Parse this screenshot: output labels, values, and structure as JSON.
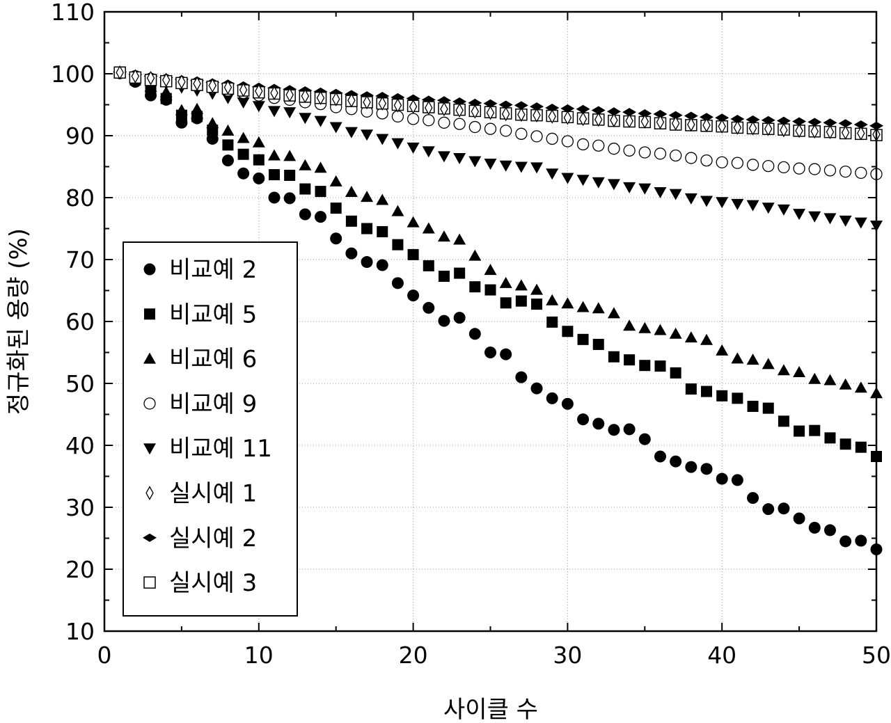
{
  "chart_data": {
    "type": "scatter",
    "xlabel": "사이클 수",
    "ylabel": "정규화된 용량 (%)",
    "xlim": [
      0,
      50
    ],
    "ylim": [
      10,
      110
    ],
    "xticks": [
      0,
      10,
      20,
      30,
      40,
      50
    ],
    "yticks": [
      10,
      20,
      30,
      40,
      50,
      60,
      70,
      80,
      90,
      100,
      110
    ],
    "grid": true,
    "legend_position": "lower-left",
    "x": [
      1,
      2,
      3,
      4,
      5,
      6,
      7,
      8,
      9,
      10,
      11,
      12,
      13,
      14,
      15,
      16,
      17,
      18,
      19,
      20,
      21,
      22,
      23,
      24,
      25,
      26,
      27,
      28,
      29,
      30,
      31,
      32,
      33,
      34,
      35,
      36,
      37,
      38,
      39,
      40,
      41,
      42,
      43,
      44,
      45,
      46,
      47,
      48,
      49,
      50
    ],
    "series": [
      {
        "name": "비교예 2",
        "marker": "circle-filled",
        "values": [
          100.2,
          98.7,
          96.5,
          95.8,
          92.1,
          92.8,
          89.5,
          86.0,
          83.9,
          83.1,
          80.0,
          79.9,
          77.3,
          76.9,
          73.4,
          71.0,
          69.6,
          69.1,
          66.2,
          64.2,
          62.2,
          60.1,
          60.6,
          58.0,
          55.0,
          54.7,
          51.0,
          49.2,
          47.6,
          46.7,
          44.2,
          43.5,
          42.5,
          42.6,
          41.0,
          38.2,
          37.4,
          36.5,
          36.2,
          34.6,
          34.4,
          31.5,
          29.7,
          29.8,
          28.2,
          26.7,
          26.3,
          24.5,
          24.6,
          23.2
        ]
      },
      {
        "name": "비교예 5",
        "marker": "square-filled",
        "values": [
          100.2,
          99.0,
          97.4,
          96.0,
          93.3,
          93.1,
          90.9,
          88.5,
          87.0,
          86.1,
          83.7,
          83.6,
          81.4,
          81.0,
          78.3,
          76.2,
          75.0,
          74.5,
          72.4,
          70.8,
          69.0,
          67.3,
          67.8,
          65.6,
          65.1,
          63.0,
          63.3,
          62.8,
          59.9,
          58.4,
          57.1,
          56.3,
          54.3,
          53.8,
          52.9,
          52.8,
          51.7,
          49.1,
          48.7,
          48.0,
          47.6,
          46.3,
          46.0,
          43.9,
          42.3,
          42.4,
          41.2,
          40.2,
          39.7,
          38.2
        ]
      },
      {
        "name": "비교예 6",
        "marker": "triangle-up",
        "values": [
          100.3,
          99.3,
          97.9,
          97.0,
          94.1,
          94.3,
          92.0,
          90.8,
          89.6,
          88.9,
          86.8,
          86.7,
          85.2,
          84.8,
          82.6,
          80.9,
          80.1,
          79.6,
          77.8,
          76.0,
          75.0,
          73.7,
          73.2,
          70.6,
          68.3,
          66.2,
          65.8,
          65.1,
          63.4,
          62.9,
          62.3,
          62.1,
          61.3,
          59.3,
          58.9,
          58.6,
          58.0,
          57.4,
          57.0,
          55.3,
          54.0,
          53.8,
          53.1,
          52.1,
          51.8,
          50.7,
          50.5,
          49.8,
          49.3,
          48.4
        ]
      },
      {
        "name": "비교예 9",
        "marker": "circle-open",
        "values": [
          100.1,
          99.6,
          99.2,
          98.9,
          98.4,
          98.1,
          97.7,
          97.3,
          96.9,
          96.5,
          96.1,
          95.8,
          95.4,
          95.1,
          94.6,
          94.3,
          93.9,
          93.6,
          93.1,
          92.7,
          92.5,
          92.1,
          91.9,
          91.4,
          91.1,
          90.8,
          90.3,
          89.9,
          89.5,
          89.1,
          88.6,
          88.4,
          87.9,
          87.6,
          87.3,
          87.1,
          86.8,
          86.4,
          86.0,
          85.7,
          85.6,
          85.3,
          85.1,
          84.9,
          84.7,
          84.6,
          84.4,
          84.2,
          84.0,
          83.8
        ]
      },
      {
        "name": "비교예 11",
        "marker": "triangle-down",
        "values": [
          100.1,
          99.5,
          98.9,
          98.4,
          97.8,
          97.3,
          96.8,
          96.1,
          95.4,
          94.8,
          94.0,
          93.8,
          92.9,
          92.4,
          91.4,
          90.6,
          90.2,
          89.5,
          88.8,
          88.1,
          87.5,
          86.7,
          86.4,
          85.9,
          85.5,
          85.2,
          85.0,
          84.9,
          83.9,
          83.2,
          82.9,
          82.5,
          82.2,
          81.7,
          81.5,
          80.9,
          80.6,
          79.9,
          79.5,
          79.3,
          79.0,
          78.8,
          78.4,
          78.1,
          77.4,
          77.0,
          76.7,
          76.3,
          76.0,
          75.5
        ]
      },
      {
        "name": "실시예 1",
        "marker": "diamond-open",
        "values": [
          100.2,
          99.6,
          99.3,
          99.0,
          98.7,
          98.4,
          98.1,
          97.8,
          97.4,
          97.2,
          96.9,
          96.6,
          96.4,
          96.1,
          95.9,
          95.7,
          95.4,
          95.2,
          94.9,
          94.7,
          94.5,
          94.3,
          94.1,
          93.9,
          93.7,
          93.5,
          93.4,
          93.3,
          93.1,
          92.9,
          92.7,
          92.6,
          92.5,
          92.4,
          92.3,
          92.2,
          92.0,
          91.8,
          91.7,
          91.5,
          91.3,
          91.2,
          91.1,
          90.9,
          90.8,
          90.7,
          90.6,
          90.5,
          90.4,
          90.2
        ]
      },
      {
        "name": "실시예 2",
        "marker": "diamond-filled",
        "values": [
          100.3,
          99.9,
          99.6,
          99.4,
          99.1,
          98.9,
          98.6,
          98.4,
          98.1,
          97.9,
          97.7,
          97.5,
          97.3,
          97.1,
          96.9,
          96.7,
          96.5,
          96.4,
          96.2,
          96.0,
          95.8,
          95.7,
          95.5,
          95.3,
          95.2,
          95.0,
          94.9,
          94.7,
          94.5,
          94.4,
          94.3,
          94.1,
          93.9,
          93.8,
          93.6,
          93.5,
          93.3,
          93.2,
          93.0,
          92.9,
          92.7,
          92.6,
          92.5,
          92.4,
          92.3,
          92.2,
          92.1,
          92.0,
          91.8,
          91.6
        ]
      },
      {
        "name": "실시예 3",
        "marker": "square-open",
        "values": [
          100.2,
          99.4,
          99.0,
          98.8,
          98.5,
          98.2,
          97.9,
          97.6,
          97.3,
          97.0,
          96.8,
          96.5,
          96.3,
          96.1,
          95.9,
          95.6,
          95.4,
          95.2,
          95.0,
          94.8,
          94.6,
          94.4,
          94.2,
          94.0,
          93.8,
          93.6,
          93.4,
          93.3,
          93.2,
          93.0,
          92.8,
          92.6,
          92.4,
          92.3,
          92.2,
          92.0,
          91.8,
          91.7,
          91.6,
          91.5,
          91.3,
          91.2,
          91.1,
          91.0,
          90.8,
          90.7,
          90.6,
          90.4,
          90.3,
          90.1
        ]
      }
    ]
  }
}
